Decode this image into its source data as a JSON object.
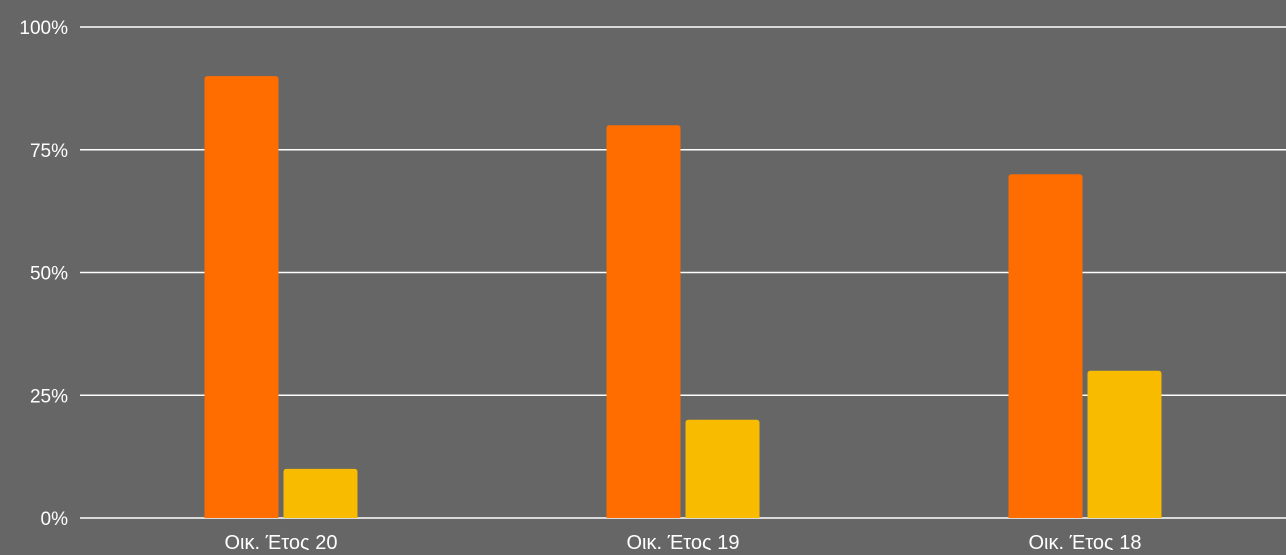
{
  "chart_data": {
    "type": "bar",
    "categories": [
      "Οικ. Έτος 20",
      "Οικ. Έτος 19",
      "Οικ. Έτος 18"
    ],
    "series": [
      {
        "values": [
          90,
          80,
          70
        ],
        "color": "#FF6D00"
      },
      {
        "values": [
          10,
          20,
          30
        ],
        "color": "#F9BB00"
      }
    ],
    "ylim": [
      0,
      100
    ],
    "yticks": [
      0,
      25,
      50,
      75,
      100
    ],
    "ytick_labels": [
      "0%",
      "25%",
      "50%",
      "75%",
      "100%"
    ],
    "grid": true,
    "legend": "none",
    "background_color": "#666666",
    "gridline_color": "#FFFFFF",
    "text_color": "#FFFFFF"
  }
}
